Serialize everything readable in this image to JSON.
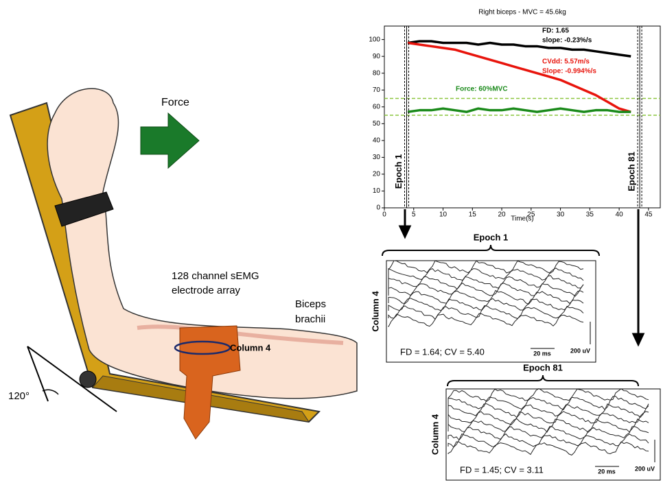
{
  "illustration": {
    "force_label": "Force",
    "array_label": [
      "128 channel sEMG",
      "electrode array"
    ],
    "muscle_label": [
      "Biceps",
      "brachii"
    ],
    "column_label": "Column 4",
    "angle_label": "120°"
  },
  "chart_data": {
    "type": "line",
    "title": "Right biceps - MVC = 45.6kg",
    "x_label": "Time(s)",
    "x": [
      4,
      6,
      8,
      10,
      12,
      14,
      16,
      18,
      20,
      22,
      24,
      26,
      28,
      30,
      32,
      34,
      36,
      38,
      40,
      42
    ],
    "series": [
      {
        "color": "#000000",
        "values": [
          98,
          99,
          99,
          98,
          98,
          98,
          97,
          98,
          97,
          97,
          96,
          96,
          95,
          95,
          94,
          94,
          93,
          92,
          91,
          90
        ]
      },
      {
        "color": "#e8140c",
        "values": [
          98,
          97,
          96,
          95,
          94,
          92,
          90,
          88,
          86,
          84,
          82,
          80,
          78,
          76,
          73,
          70,
          67,
          63,
          59,
          57
        ]
      },
      {
        "color": "#1a8a1a",
        "values": [
          57,
          58,
          58,
          59,
          58,
          57,
          59,
          58,
          58,
          59,
          58,
          57,
          58,
          59,
          58,
          57,
          58,
          58,
          57,
          57
        ]
      }
    ],
    "force_band": [
      55,
      65
    ],
    "band_color": "#8cc63f",
    "markers": [
      {
        "x": 3.8,
        "label": "Epoch 1"
      },
      {
        "x": 43.5,
        "label": "Epoch 81"
      }
    ],
    "annotations": [
      {
        "text": "FD:  1.65",
        "color": "#000000"
      },
      {
        "text": "slope: -0.23%/s",
        "color": "#000000"
      },
      {
        "text": "CVdd:  5.57m/s",
        "color": "#e8140c"
      },
      {
        "text": "Slope:  -0.994%/s",
        "color": "#e8140c"
      },
      {
        "text": "Force: 60%MVC",
        "color": "#1a8a1a"
      }
    ],
    "xlim": [
      0,
      47
    ],
    "ylim": [
      0,
      108
    ],
    "xticks": [
      0,
      5,
      10,
      15,
      20,
      25,
      30,
      35,
      40,
      45
    ],
    "yticks": [
      0,
      10,
      20,
      30,
      40,
      50,
      60,
      70,
      80,
      90,
      100
    ]
  },
  "epochs": [
    {
      "title": "Epoch 1",
      "column": "Column 4",
      "stats": "FD = 1.64; CV = 5.40",
      "time_scale": "20 ms",
      "amp_scale": "200 uV"
    },
    {
      "title": "Epoch 81",
      "column": "Column 4",
      "stats": "FD = 1.45; CV = 3.11",
      "time_scale": "20 ms",
      "amp_scale": "200 uV"
    }
  ]
}
